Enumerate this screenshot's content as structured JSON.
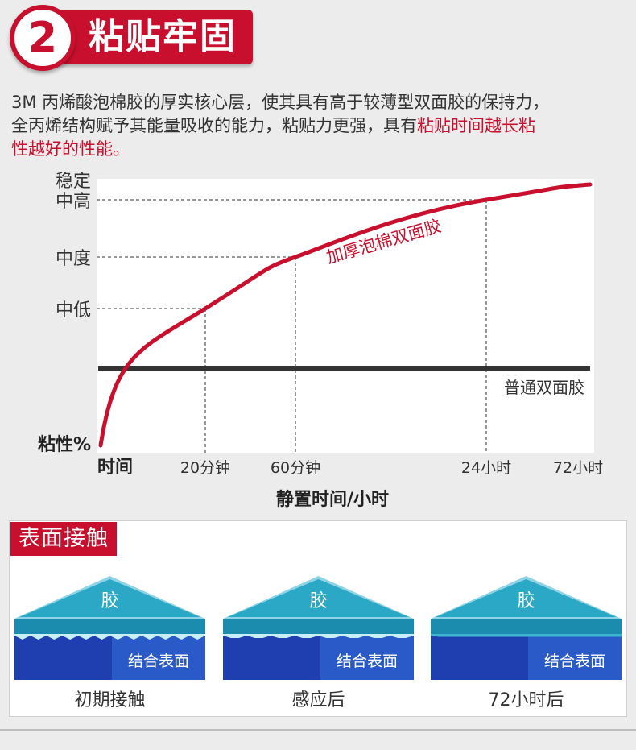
{
  "header": {
    "number": "2",
    "title": "粘贴牢固"
  },
  "description": {
    "line1": "3M 丙烯酸泡棉胶的厚实核心层，使其具有高于较薄型双面胶的保持力，",
    "line2_normal": "全丙烯结构赋予其能量吸收的能力，粘贴力更强，具有",
    "line2_highlight": "粘贴时间越长粘",
    "line3_highlight": "性越好的性能。"
  },
  "chart_data": {
    "type": "line",
    "xlabel": "静置时间/小时",
    "ylabel": "粘性%",
    "x_origin_label": "时间",
    "x_tick_labels": [
      "20分钟",
      "60分钟",
      "24小时",
      "72小时"
    ],
    "y_tick_labels": [
      "中低",
      "中度",
      "中高"
    ],
    "y_top_label": "稳定",
    "series": [
      {
        "name": "加厚泡棉双面胶",
        "color": "#c8102e",
        "points": [
          [
            "时间",
            "粘性%"
          ],
          [
            "20分钟",
            "中低"
          ],
          [
            "60分钟",
            "中度"
          ],
          [
            "24小时",
            "中高"
          ],
          [
            "72小时",
            "稳定"
          ]
        ]
      },
      {
        "name": "普通双面胶",
        "color": "#333333",
        "level": "constant"
      }
    ],
    "grid": "dashed guides at tick positions"
  },
  "panel": {
    "tag": "表面接触",
    "items": [
      {
        "top_label": "胶",
        "bottom_label": "结合表面",
        "caption": "初期接触"
      },
      {
        "top_label": "胶",
        "bottom_label": "结合表面",
        "caption": "感应后"
      },
      {
        "top_label": "胶",
        "bottom_label": "结合表面",
        "caption": "72小时后"
      }
    ],
    "colors": {
      "glue": "#2aa8c6",
      "surface": "#1f3fb0"
    }
  }
}
